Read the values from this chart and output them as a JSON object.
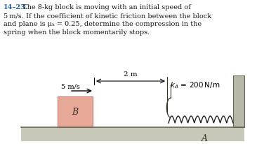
{
  "title_number": "14–23.",
  "body_text_line1": "   The 8-kg block is moving with an initial speed of",
  "body_text_line2": "5 m/s. If the coefficient of kinetic friction between the block",
  "body_text_line3": "and plane is μₖ = 0.25, determine the compression in the",
  "body_text_line4": "spring when the block momentarily stops.",
  "title_color": "#1f5fa6",
  "body_color": "#1a1a1a",
  "background_color": "#ffffff",
  "floor_fill": "#c8c8b8",
  "wall_fill": "#b8b8a8",
  "block_fill": "#e8a898",
  "block_edge": "#cc7868",
  "block_label": "B",
  "spring_label": "A",
  "ka_label": "k_A = 200 N/m",
  "velocity_label": "5 m/s",
  "distance_label": "2 m",
  "text_fontsize": 7.0,
  "diagram_fontsize": 7.5
}
